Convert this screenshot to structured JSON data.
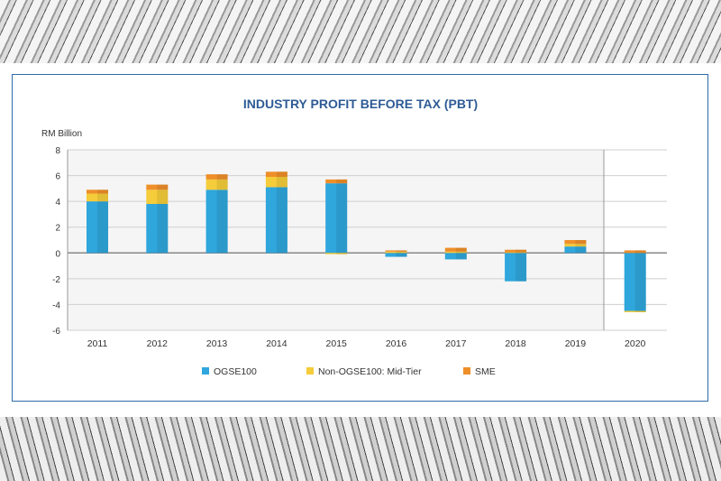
{
  "chart_data": {
    "type": "bar",
    "stacked": true,
    "title": "INDUSTRY PROFIT BEFORE TAX (PBT)",
    "ylabel": "RM Billion",
    "xlabel": "",
    "ylim": [
      -6,
      8
    ],
    "yticks": [
      8,
      6,
      4,
      2,
      0,
      -2,
      -4,
      -6
    ],
    "grid": true,
    "legend": "bottom",
    "categories": [
      "2011",
      "2012",
      "2013",
      "2014",
      "2015",
      "2016",
      "2017",
      "2018",
      "2019",
      "2020"
    ],
    "series": [
      {
        "name": "OGSE100",
        "color": "#2fa6dc",
        "values": [
          4.0,
          3.8,
          4.9,
          5.1,
          5.4,
          -0.3,
          -0.5,
          -2.2,
          0.5,
          -4.5
        ]
      },
      {
        "name": "Non-OGSE100: Mid-Tier",
        "color": "#f5cc3a",
        "values": [
          0.6,
          1.1,
          0.8,
          0.8,
          -0.1,
          0.1,
          0.1,
          0.05,
          0.2,
          -0.1
        ]
      },
      {
        "name": "SME",
        "color": "#ee8f2a",
        "values": [
          0.3,
          0.4,
          0.4,
          0.4,
          0.3,
          0.1,
          0.3,
          0.2,
          0.3,
          0.2
        ]
      }
    ]
  }
}
